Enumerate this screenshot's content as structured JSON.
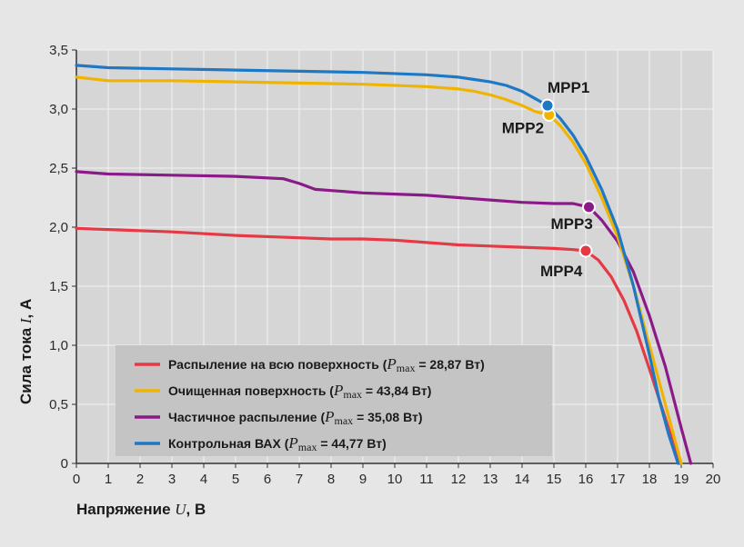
{
  "chart_data": {
    "type": "line",
    "title": "",
    "xlabel": "Напряжение U, В",
    "xlabel_prefix": "Напряжение ",
    "xlabel_var": "U",
    "xlabel_unit": ", В",
    "ylabel": "Сила тока I, А",
    "ylabel_prefix": "Сила тока ",
    "ylabel_var": "I",
    "ylabel_unit": ", А",
    "xlim": [
      0,
      20
    ],
    "ylim": [
      0,
      3.5
    ],
    "x_ticks": [
      0,
      1,
      2,
      3,
      4,
      5,
      6,
      7,
      8,
      9,
      10,
      11,
      12,
      13,
      14,
      15,
      16,
      17,
      18,
      19,
      20
    ],
    "x_tick_labels": [
      "0",
      "1",
      "2",
      "3",
      "4",
      "5",
      "6",
      "7",
      "8",
      "9",
      "10",
      "11",
      "12",
      "13",
      "14",
      "15",
      "16",
      "17",
      "18",
      "19",
      "20"
    ],
    "y_ticks": [
      0,
      0.5,
      1,
      1.5,
      2,
      2.5,
      3,
      3.5
    ],
    "y_tick_labels": [
      "0",
      "0,5",
      "1,0",
      "1,5",
      "2,0",
      "2,5",
      "3,0",
      "3,5"
    ],
    "grid": true,
    "legend_position": "bottom-left",
    "series": [
      {
        "key": "spray_full",
        "name": "Распыление на всю поверхность",
        "legend_prefix": "Распыление на всю поверхность (",
        "pmax_value": " = 28,87 Вт)",
        "color": "#e63946",
        "x": [
          0,
          1,
          3,
          5,
          7,
          8,
          9,
          10,
          11,
          12,
          13,
          14,
          15,
          15.6,
          16.0,
          16.4,
          16.8,
          17.2,
          17.6,
          18.0,
          18.3,
          18.6,
          18.8,
          18.95
        ],
        "y": [
          1.99,
          1.98,
          1.96,
          1.93,
          1.91,
          1.9,
          1.9,
          1.89,
          1.87,
          1.85,
          1.84,
          1.83,
          1.82,
          1.81,
          1.8,
          1.72,
          1.58,
          1.38,
          1.12,
          0.8,
          0.55,
          0.3,
          0.12,
          0.0
        ],
        "mpp": {
          "label": "MPP4",
          "x": 16.0,
          "y": 1.8
        }
      },
      {
        "key": "cleaned",
        "name": "Очищенная поверхность",
        "legend_prefix": "Очищенная поверхность (",
        "pmax_value": " = 43,84 Вт)",
        "color": "#f0b400",
        "x": [
          0,
          1,
          3,
          5,
          7,
          9,
          11,
          12,
          12.5,
          13,
          13.5,
          14,
          14.4,
          14.85,
          15.2,
          15.6,
          16.0,
          16.5,
          17.0,
          17.5,
          18.0,
          18.4,
          18.7,
          19.0
        ],
        "y": [
          3.27,
          3.24,
          3.24,
          3.23,
          3.22,
          3.21,
          3.19,
          3.17,
          3.15,
          3.12,
          3.08,
          3.03,
          2.98,
          2.95,
          2.86,
          2.72,
          2.54,
          2.25,
          1.92,
          1.5,
          1.0,
          0.6,
          0.3,
          0.0
        ],
        "mpp": {
          "label": "MPP2",
          "x": 14.85,
          "y": 2.95
        }
      },
      {
        "key": "partial",
        "name": "Частичное распыление",
        "legend_prefix": "Частичное распыление (",
        "pmax_value": " = 35,08 Вт)",
        "color": "#8b1a89",
        "x": [
          0,
          1,
          3,
          5,
          6.5,
          7.0,
          7.5,
          8,
          9,
          10,
          11,
          12,
          13,
          14,
          15,
          15.6,
          16.1,
          16.5,
          17.0,
          17.5,
          18.0,
          18.5,
          19.0,
          19.3
        ],
        "y": [
          2.47,
          2.45,
          2.44,
          2.43,
          2.41,
          2.37,
          2.32,
          2.31,
          2.29,
          2.28,
          2.27,
          2.25,
          2.23,
          2.21,
          2.2,
          2.2,
          2.17,
          2.06,
          1.88,
          1.62,
          1.25,
          0.82,
          0.3,
          0.0
        ],
        "mpp": {
          "label": "MPP3",
          "x": 16.1,
          "y": 2.17
        }
      },
      {
        "key": "control",
        "name": "Контрольная ВАХ",
        "legend_prefix": "Контрольная ВАХ (",
        "pmax_value": " = 44,77 Вт)",
        "color": "#1f78c4",
        "x": [
          0,
          1,
          3,
          5,
          7,
          9,
          11,
          12,
          12.5,
          13,
          13.5,
          14,
          14.4,
          14.8,
          15.2,
          15.6,
          16.0,
          16.5,
          17.0,
          17.5,
          18.0,
          18.3,
          18.6,
          18.9
        ],
        "y": [
          3.37,
          3.35,
          3.34,
          3.33,
          3.32,
          3.31,
          3.29,
          3.27,
          3.25,
          3.23,
          3.2,
          3.15,
          3.09,
          3.03,
          2.92,
          2.78,
          2.6,
          2.32,
          1.98,
          1.5,
          0.92,
          0.55,
          0.25,
          0.0
        ],
        "mpp": {
          "label": "MPP1",
          "x": 14.8,
          "y": 3.03
        }
      }
    ],
    "legend_pmax": "P",
    "legend_pmax_sub": "max"
  }
}
